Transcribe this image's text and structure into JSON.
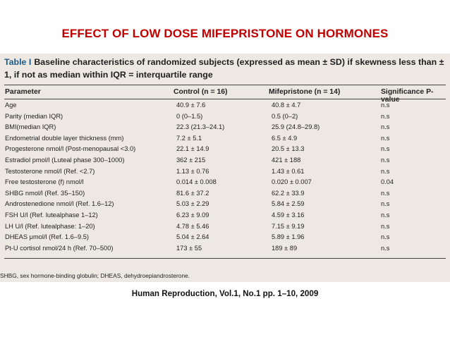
{
  "slide": {
    "title": "EFFECT OF LOW DOSE MIFEPRISTONE ON HORMONES",
    "source": "Human Reproduction, Vol.1, No.1 pp. 1–10, 2009"
  },
  "table": {
    "label": "Table I",
    "caption": "Baseline characteristics of randomized subjects (expressed as mean ± SD) if skewness less than ± 1, if not as median within IQR = interquartile range",
    "headers": {
      "parameter": "Parameter",
      "control": "Control (n = 16)",
      "mifepristone": "Mifepristone (n = 14)",
      "significance": "Significance P-value"
    },
    "rows": [
      {
        "parameter": "Age",
        "control": "40.9 ± 7.6",
        "mifepristone": "40.8 ± 4.7",
        "significance": "n.s"
      },
      {
        "parameter": "Parity (median IQR)",
        "control": "0 (0–1.5)",
        "mifepristone": "0.5 (0–2)",
        "significance": "n.s"
      },
      {
        "parameter": "BMI(median IQR)",
        "control": "22.3 (21.3–24.1)",
        "mifepristone": "25.9 (24.8–29.8)",
        "significance": "n.s"
      },
      {
        "parameter": "Endometrial double layer thickness (mm)",
        "control": "7.2 ± 5.1",
        "mifepristone": "6.5 ± 4.9",
        "significance": "n.s"
      },
      {
        "parameter": "Progesterone nmol/l (Post-menopausal <3.0)",
        "control": "22.1 ± 14.9",
        "mifepristone": "20.5 ± 13.3",
        "significance": "n.s"
      },
      {
        "parameter": "Estradiol pmol/l (Luteal phase 300–1000)",
        "control": "362 ± 215",
        "mifepristone": "421 ± 188",
        "significance": "n.s"
      },
      {
        "parameter": "Testosterone nmol/l (Ref. <2.7)",
        "control": "1.13 ± 0.76",
        "mifepristone": "1.43 ± 0.61",
        "significance": "n.s"
      },
      {
        "parameter": "Free testosterone (f) nmol/l",
        "control": "0.014 ± 0.008",
        "mifepristone": "0.020 ± 0.007",
        "significance": "0.04"
      },
      {
        "parameter": "SHBG nmol/l (Ref. 35–150)",
        "control": "81.6 ± 37.2",
        "mifepristone": "62.2 ± 33.9",
        "significance": "n.s"
      },
      {
        "parameter": "Androstenedione nmol/l (Ref. 1.6–12)",
        "control": "5.03 ± 2.29",
        "mifepristone": "5.84 ± 2.59",
        "significance": "n.s"
      },
      {
        "parameter": "FSH U/l (Ref. lutealphase 1–12)",
        "control": "6.23 ± 9.09",
        "mifepristone": "4.59 ± 3.16",
        "significance": "n.s"
      },
      {
        "parameter": "LH U/l (Ref. lutealphase: 1–20)",
        "control": "4.78 ± 5.46",
        "mifepristone": "7.15 ± 9.19",
        "significance": "n.s"
      },
      {
        "parameter": "DHEAS μmol/l (Ref. 1.6–9.5)",
        "control": "5.04 ± 2.64",
        "mifepristone": "5.89 ± 1.96",
        "significance": "n.s"
      },
      {
        "parameter": "Pt-U cortisol nmol/24 h (Ref. 70–500)",
        "control": "173 ± 55",
        "mifepristone": "189 ± 89",
        "significance": "n.s"
      }
    ],
    "footnote": "SHBG, sex hormone-binding globulin; DHEAS, dehydroepiandrosterone."
  }
}
